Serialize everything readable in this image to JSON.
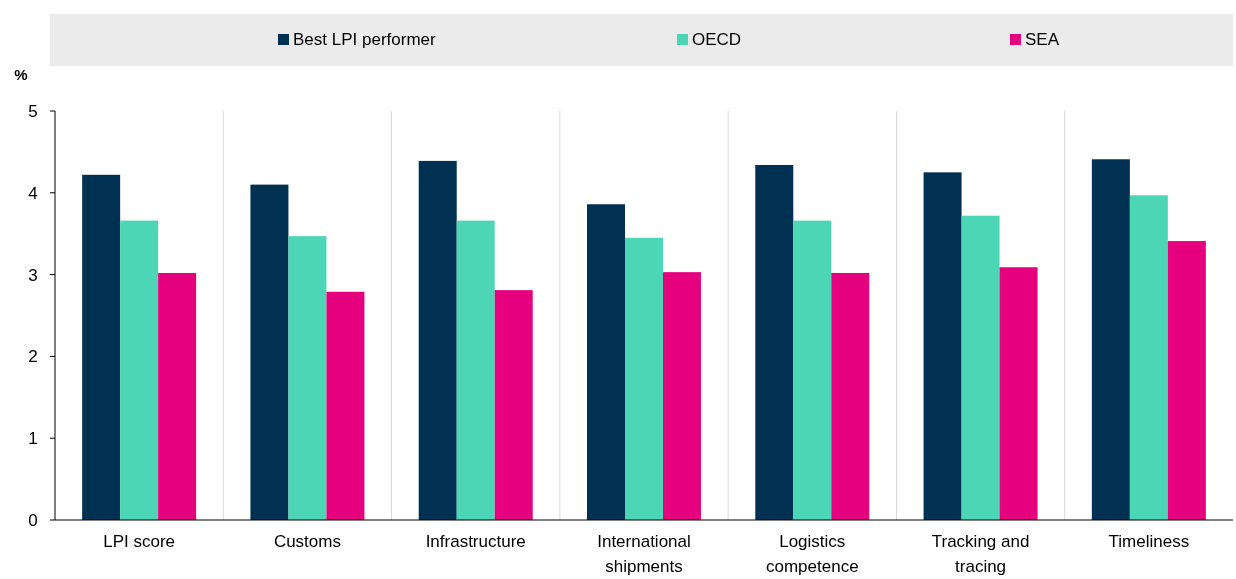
{
  "chart_data": {
    "type": "bar",
    "ylabel": "%",
    "categories": [
      "LPI score",
      "Customs",
      "Infrastructure",
      "International shipments",
      "Logistics competence",
      "Tracking and tracing",
      "Timeliness"
    ],
    "series": [
      {
        "name": "Best LPI performer",
        "color": "#003152",
        "values": [
          4.22,
          4.1,
          4.39,
          3.86,
          4.34,
          4.25,
          4.41
        ]
      },
      {
        "name": "OECD",
        "color": "#4dd6b5",
        "values": [
          3.66,
          3.47,
          3.66,
          3.45,
          3.66,
          3.72,
          3.97
        ]
      },
      {
        "name": "SEA",
        "color": "#e5007d",
        "values": [
          3.02,
          2.79,
          2.81,
          3.03,
          3.02,
          3.09,
          3.41
        ]
      }
    ],
    "ylim": [
      0,
      5
    ],
    "yticks": [
      0,
      1,
      2,
      3,
      4,
      5
    ],
    "grid": "x",
    "legend": "top"
  }
}
